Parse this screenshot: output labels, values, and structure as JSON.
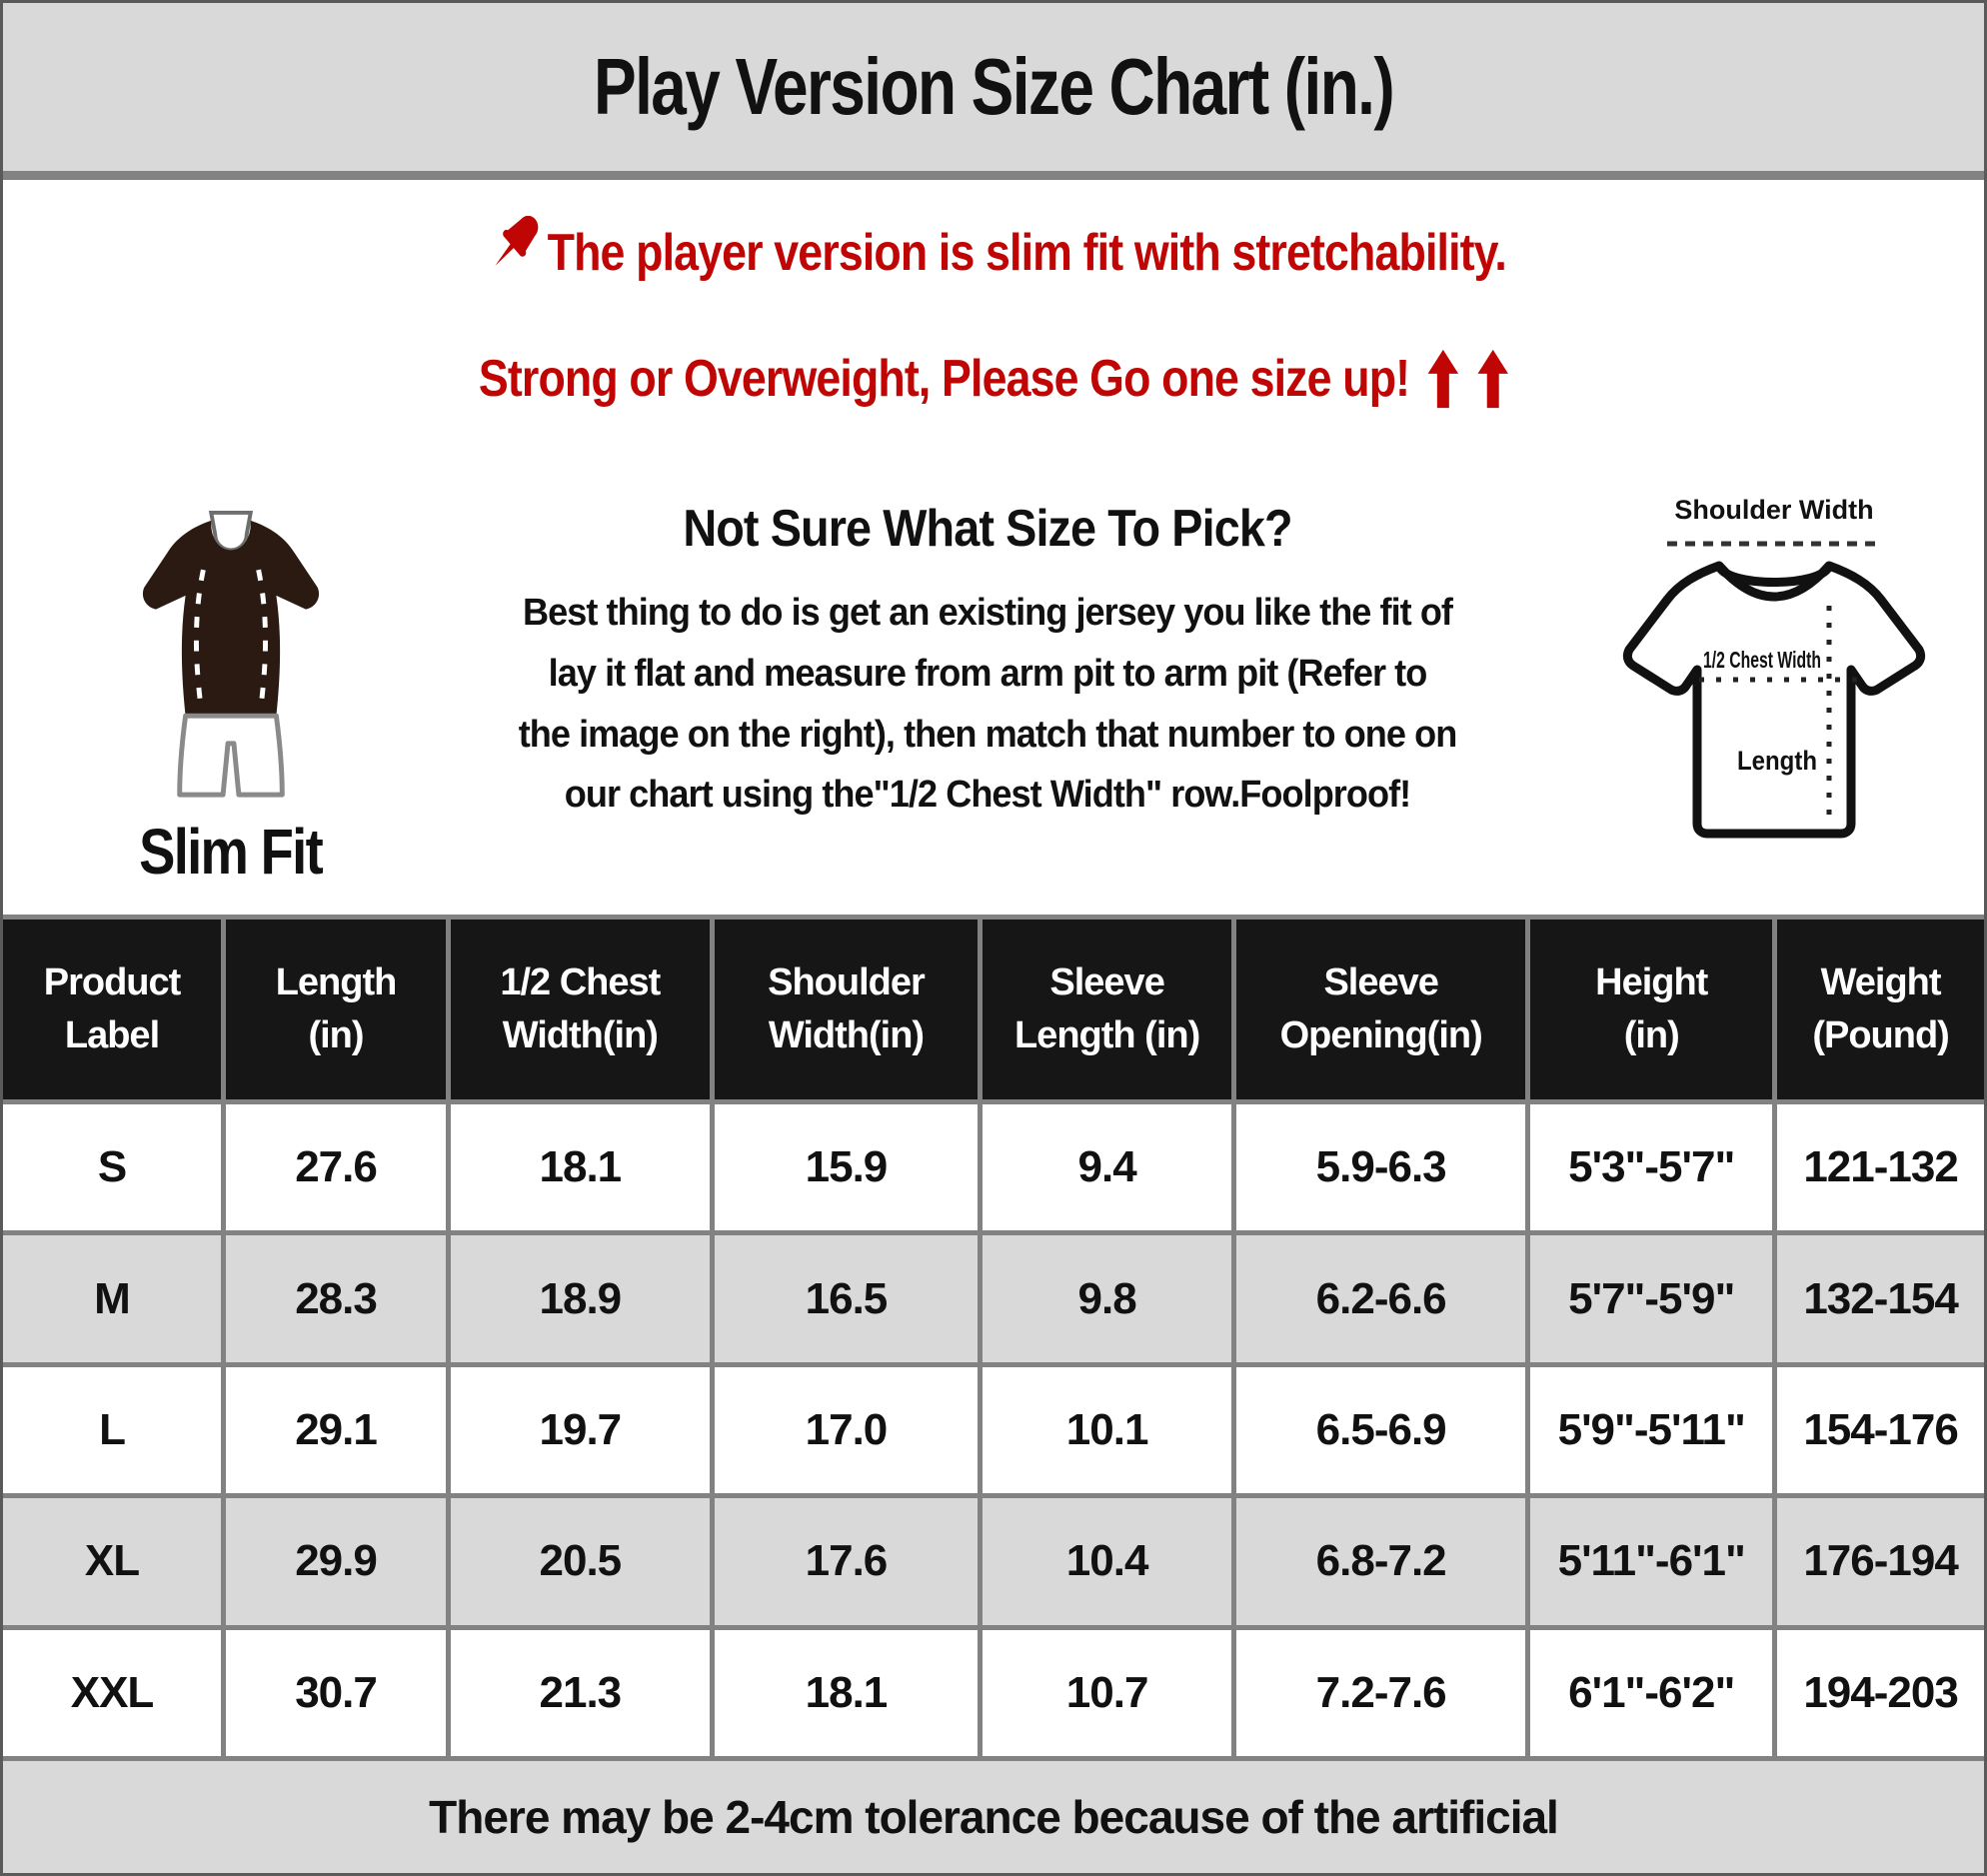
{
  "title": "Play Version Size Chart (in.)",
  "notice": {
    "line1": "The player version is slim fit with stretchability.",
    "line2": "Strong or Overweight, Please Go one size up!",
    "arrow_count": 2
  },
  "fit": {
    "label": "Slim Fit"
  },
  "guide": {
    "heading": "Not Sure What Size To Pick?",
    "lines": [
      "Best thing to do is get an existing jersey you like the fit of",
      "lay it flat and measure from arm pit to arm pit (Refer to",
      "the image on the right), then match that number to one on",
      "our chart using the\"1/2 Chest Width\" row.Foolproof!"
    ]
  },
  "diagram": {
    "shoulder_label": "Shoulder Width",
    "chest_label": "1/2 Chest Width",
    "length_label": "Length"
  },
  "table": {
    "headers": [
      [
        "Product",
        "Label"
      ],
      [
        "Length",
        "(in)"
      ],
      [
        "1/2 Chest",
        "Width(in)"
      ],
      [
        "Shoulder",
        "Width(in)"
      ],
      [
        "Sleeve",
        "Length (in)"
      ],
      [
        "Sleeve",
        "Opening(in)"
      ],
      [
        "Height",
        "(in)"
      ],
      [
        "Weight",
        "(Pound)"
      ]
    ],
    "rows": [
      [
        "S",
        "27.6",
        "18.1",
        "15.9",
        "9.4",
        "5.9-6.3",
        "5'3\"-5'7\"",
        "121-132"
      ],
      [
        "M",
        "28.3",
        "18.9",
        "16.5",
        "9.8",
        "6.2-6.6",
        "5'7\"-5'9\"",
        "132-154"
      ],
      [
        "L",
        "29.1",
        "19.7",
        "17.0",
        "10.1",
        "6.5-6.9",
        "5'9\"-5'11\"",
        "154-176"
      ],
      [
        "XL",
        "29.9",
        "20.5",
        "17.6",
        "10.4",
        "6.8-7.2",
        "5'11\"-6'1\"",
        "176-194"
      ],
      [
        "XXL",
        "30.7",
        "21.3",
        "18.1",
        "10.7",
        "7.2-7.6",
        "6'1\"-6'2\"",
        "194-203"
      ]
    ],
    "footer": "There may be 2-4cm tolerance because of the artificial"
  },
  "colors": {
    "accent_red": "#c00505",
    "header_bg": "#161616",
    "band_gray": "#d9d9d9",
    "row_alt_gray": "#d9d9d9",
    "border_gray": "#828282"
  }
}
